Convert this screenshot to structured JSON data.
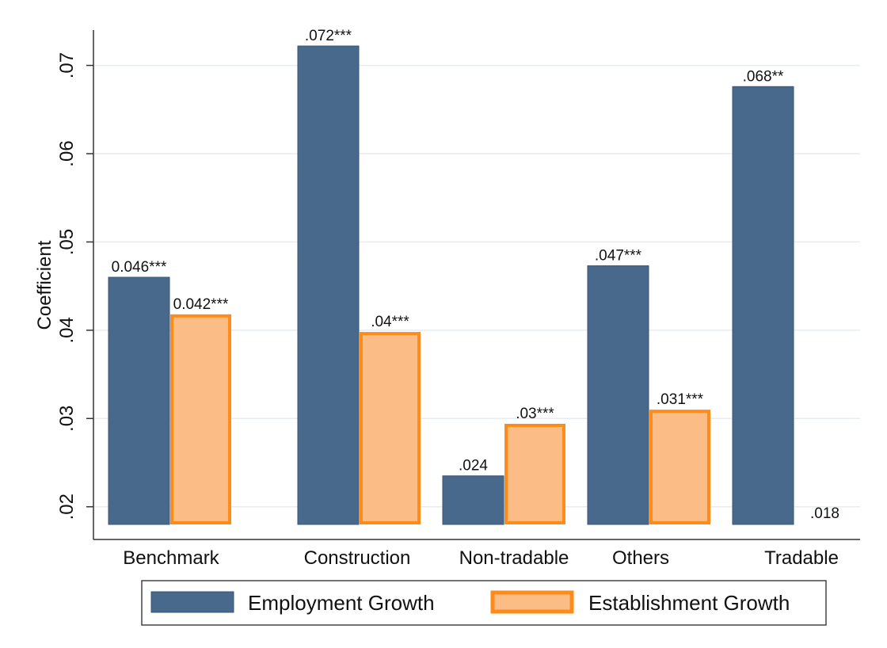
{
  "chart_data": {
    "type": "bar",
    "title": "",
    "xlabel": "",
    "ylabel": "Coefficient",
    "ylim": [
      0.018,
      0.074
    ],
    "yticks": [
      0.02,
      0.03,
      0.04,
      0.05,
      0.06,
      0.07
    ],
    "ytick_labels": [
      ".02",
      ".03",
      ".04",
      ".05",
      ".06",
      ".07"
    ],
    "grid": true,
    "legend_position": "bottom",
    "categories": [
      "Benchmark",
      "Construction",
      "Non-tradable",
      "Others",
      "Tradable"
    ],
    "series": [
      {
        "name": "Employment Growth",
        "color": "#48698b",
        "values": [
          0.046,
          0.0722,
          0.0235,
          0.0473,
          0.0676
        ],
        "labels": [
          "0.046***",
          ".072***",
          ".024",
          ".047***",
          ".068**"
        ]
      },
      {
        "name": "Establishment Growth",
        "color": "#fbbd85",
        "edge_color": "#ff8c1a",
        "values": [
          0.0418,
          0.0398,
          0.0294,
          0.031,
          0.018
        ],
        "labels": [
          "0.042***",
          ".04***",
          ".03***",
          ".031***",
          ".018"
        ]
      }
    ]
  }
}
